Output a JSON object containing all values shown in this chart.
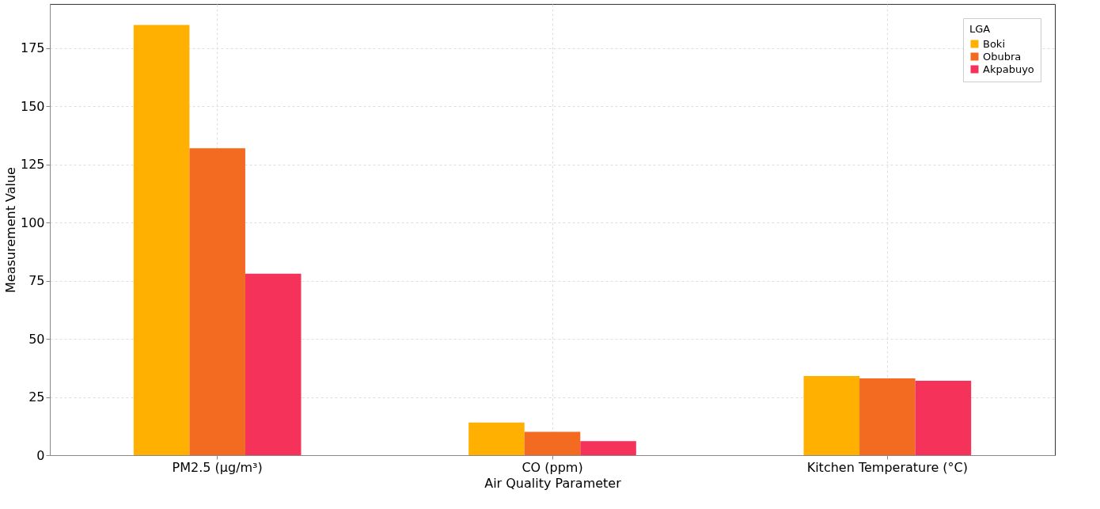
{
  "chart_data": {
    "type": "bar",
    "xlabel": "Air Quality Parameter",
    "ylabel": "Measurement Value",
    "legend_title": "LGA",
    "categories": [
      "PM2.5 (µg/m³)",
      "CO (ppm)",
      "Kitchen Temperature (°C)"
    ],
    "series": [
      {
        "name": "Boki",
        "color": "#ffb000",
        "values": [
          185,
          14,
          34
        ]
      },
      {
        "name": "Obubra",
        "color": "#f26b21",
        "values": [
          132,
          10,
          33
        ]
      },
      {
        "name": "Akpabuyo",
        "color": "#f5325a",
        "values": [
          78,
          6,
          32
        ]
      }
    ],
    "ylim": [
      0,
      194
    ],
    "yticks": [
      0,
      25,
      50,
      75,
      100,
      125,
      150,
      175
    ],
    "grid": true,
    "legend": "top right"
  }
}
